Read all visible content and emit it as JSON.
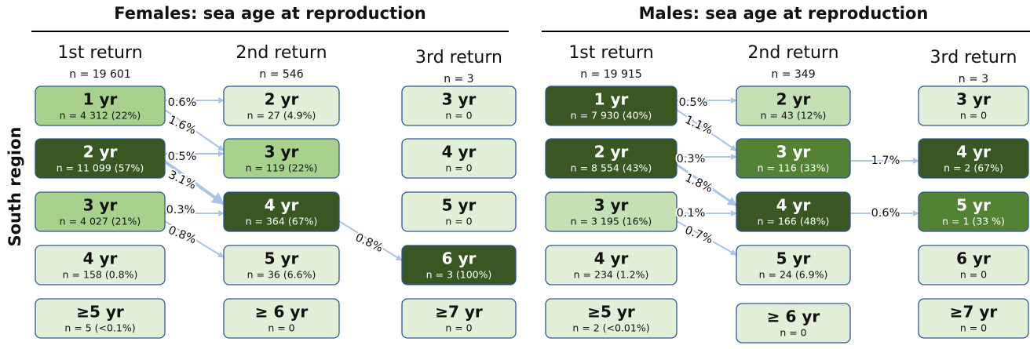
{
  "side_label": "South region",
  "panels": [
    {
      "title": "Females: sea age at reproduction",
      "columns": [
        {
          "header": "1st return",
          "n": "n = 19 601",
          "boxes": [
            {
              "age": "1 yr",
              "n": "n = 4 312 (22%)",
              "color": "#a9d18e"
            },
            {
              "age": "2 yr",
              "n": "n = 11 099 (57%)",
              "color": "#385723"
            },
            {
              "age": "3 yr",
              "n": "n = 4 027 (21%)",
              "color": "#a9d18e"
            },
            {
              "age": "4 yr",
              "n": "n = 158 (0.8%)",
              "color": "#e2f0d9"
            },
            {
              "age": "≥5 yr",
              "n": "n = 5 (<0.1%)",
              "color": "#e2f0d9"
            }
          ]
        },
        {
          "header": "2nd return",
          "n": "n = 546",
          "boxes": [
            {
              "age": "2 yr",
              "n": "n = 27 (4.9%)",
              "color": "#e2f0d9"
            },
            {
              "age": "3 yr",
              "n": "n = 119 (22%)",
              "color": "#a9d18e"
            },
            {
              "age": "4 yr",
              "n": "n = 364 (67%)",
              "color": "#385723"
            },
            {
              "age": "5 yr",
              "n": "n = 36 (6.6%)",
              "color": "#e2f0d9"
            },
            {
              "age": "≥ 6 yr",
              "n": "n = 0",
              "color": "#e2f0d9"
            }
          ]
        },
        {
          "header": "3rd return",
          "n": "n = 3",
          "boxes": [
            {
              "age": "3 yr",
              "n": "n = 0",
              "color": "#e2f0d9"
            },
            {
              "age": "4 yr",
              "n": "n = 0",
              "color": "#e2f0d9"
            },
            {
              "age": "5 yr",
              "n": "n = 0",
              "color": "#e2f0d9"
            },
            {
              "age": "6 yr",
              "n": "n = 3 (100%)",
              "color": "#385723"
            },
            {
              "age": "≥7 yr",
              "n": "n = 0",
              "color": "#e2f0d9"
            }
          ]
        }
      ],
      "arrows": [
        "0.6%",
        "1.6%",
        "0.5%",
        "3.1%",
        "0.3%",
        "0.8%",
        "0.8%"
      ]
    },
    {
      "title": "Males: sea age at reproduction",
      "columns": [
        {
          "header": "1st return",
          "n": "n = 19 915",
          "boxes": [
            {
              "age": "1 yr",
              "n": "n = 7 930 (40%)",
              "color": "#385723"
            },
            {
              "age": "2 yr",
              "n": "n = 8 554 (43%)",
              "color": "#385723"
            },
            {
              "age": "3 yr",
              "n": "n = 3 195 (16%)",
              "color": "#c5e0b4"
            },
            {
              "age": "4 yr",
              "n": "n = 234 (1.2%)",
              "color": "#e2f0d9"
            },
            {
              "age": "≥5 yr",
              "n": "n = 2 (<0.01%)",
              "color": "#e2f0d9"
            }
          ]
        },
        {
          "header": "2nd return",
          "n": "n = 349",
          "boxes": [
            {
              "age": "2 yr",
              "n": "n = 43 (12%)",
              "color": "#c5e0b4"
            },
            {
              "age": "3 yr",
              "n": "n = 116 (33%)",
              "color": "#548235"
            },
            {
              "age": "4 yr",
              "n": "n = 166 (48%)",
              "color": "#385723"
            },
            {
              "age": "5 yr",
              "n": "n = 24 (6.9%)",
              "color": "#e2f0d9"
            },
            {
              "age": "≥ 6 yr",
              "n": "n = 0",
              "color": "#e2f0d9"
            }
          ]
        },
        {
          "header": "3rd return",
          "n": "n = 3",
          "boxes": [
            {
              "age": "3 yr",
              "n": "n = 0",
              "color": "#e2f0d9"
            },
            {
              "age": "4 yr",
              "n": "n = 2 (67%)",
              "color": "#385723"
            },
            {
              "age": "5 yr",
              "n": "n = 1 (33 %)",
              "color": "#548235"
            },
            {
              "age": "6 yr",
              "n": "n = 0",
              "color": "#e2f0d9"
            },
            {
              "age": "≥7 yr",
              "n": "n = 0",
              "color": "#e2f0d9"
            }
          ]
        }
      ],
      "arrows": [
        "0.5%",
        "1.1%",
        "0.3%",
        "1.8%",
        "0.1%",
        "0.7%",
        "1.7%",
        "0.6%"
      ]
    }
  ]
}
